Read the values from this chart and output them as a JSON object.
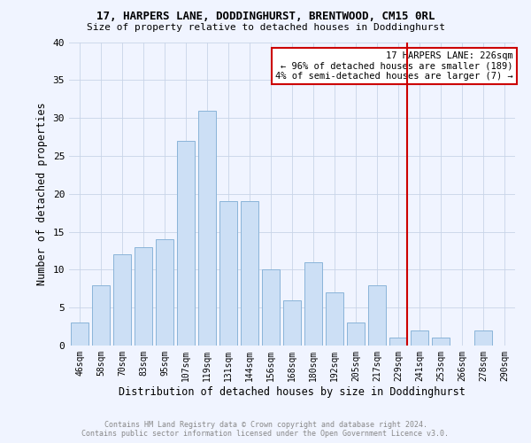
{
  "title": "17, HARPERS LANE, DODDINGHURST, BRENTWOOD, CM15 0RL",
  "subtitle": "Size of property relative to detached houses in Doddinghurst",
  "xlabel": "Distribution of detached houses by size in Doddinghurst",
  "ylabel": "Number of detached properties",
  "categories": [
    "46sqm",
    "58sqm",
    "70sqm",
    "83sqm",
    "95sqm",
    "107sqm",
    "119sqm",
    "131sqm",
    "144sqm",
    "156sqm",
    "168sqm",
    "180sqm",
    "192sqm",
    "205sqm",
    "217sqm",
    "229sqm",
    "241sqm",
    "253sqm",
    "266sqm",
    "278sqm",
    "290sqm"
  ],
  "values": [
    3,
    8,
    12,
    13,
    14,
    27,
    31,
    19,
    19,
    10,
    6,
    11,
    7,
    3,
    8,
    1,
    2,
    1,
    0,
    2,
    0
  ],
  "bar_color": "#ccdff5",
  "bar_edge_color": "#8ab4d8",
  "ylim": [
    0,
    40
  ],
  "yticks": [
    0,
    5,
    10,
    15,
    20,
    25,
    30,
    35,
    40
  ],
  "ref_line_index": 15,
  "ref_line_color": "#cc0000",
  "annotation_title": "17 HARPERS LANE: 226sqm",
  "annotation_line1": "← 96% of detached houses are smaller (189)",
  "annotation_line2": "4% of semi-detached houses are larger (7) →",
  "footer_line1": "Contains HM Land Registry data © Crown copyright and database right 2024.",
  "footer_line2": "Contains public sector information licensed under the Open Government Licence v3.0.",
  "background_color": "#f0f4ff",
  "grid_color": "#c8d4e8"
}
